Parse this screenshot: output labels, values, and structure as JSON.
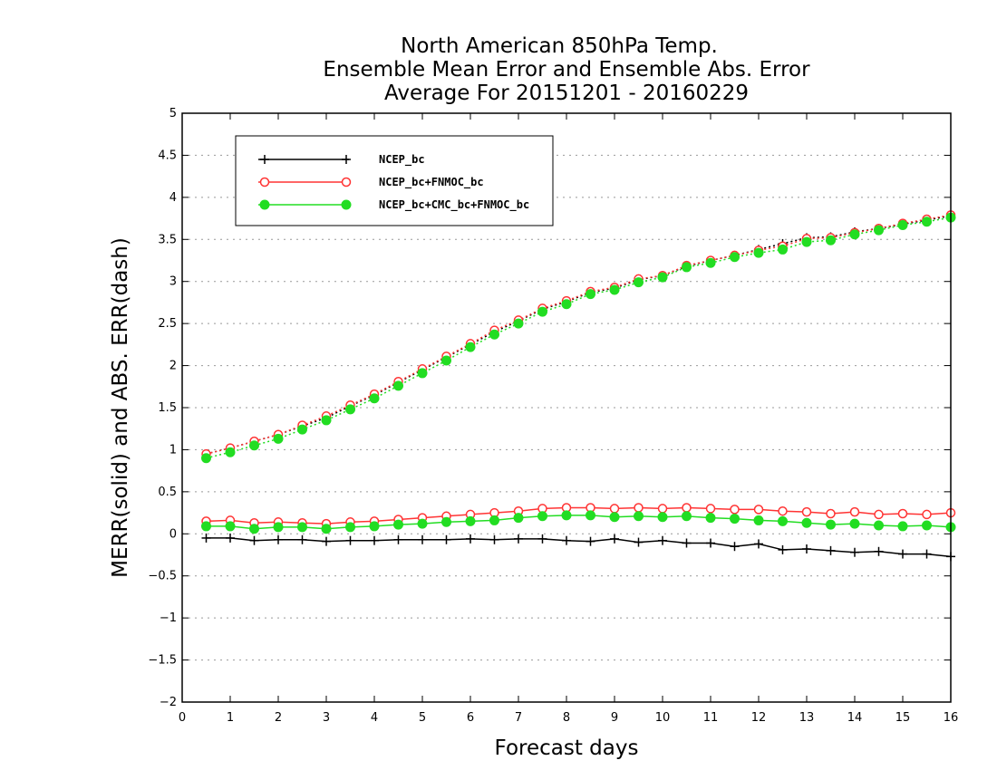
{
  "chart_data": {
    "type": "line",
    "title": [
      "North American 850hPa Temp.",
      "Ensemble Mean Error and Ensemble Abs. Error",
      "Average For 20151201 - 20160229"
    ],
    "xlabel": "Forecast days",
    "ylabel": "MERR(solid) and ABS. ERR(dash)",
    "xlim": [
      0,
      16
    ],
    "ylim": [
      -2,
      5
    ],
    "x_ticks": [
      "0",
      "1",
      "2",
      "3",
      "4",
      "5",
      "6",
      "7",
      "8",
      "9",
      "10",
      "11",
      "12",
      "13",
      "14",
      "15",
      "16"
    ],
    "y_ticks": [
      "−2",
      "−1.5",
      "−1",
      "−0.5",
      "0",
      "0.5",
      "1",
      "1.5",
      "2",
      "2.5",
      "3",
      "3.5",
      "4",
      "4.5",
      "5"
    ],
    "grid": "horizontal dotted",
    "legend_position": "top-left",
    "x": [
      0.5,
      1,
      1.5,
      2,
      2.5,
      3,
      3.5,
      4,
      4.5,
      5,
      5.5,
      6,
      6.5,
      7,
      7.5,
      8,
      8.5,
      9,
      9.5,
      10,
      10.5,
      11,
      11.5,
      12,
      12.5,
      13,
      13.5,
      14,
      14.5,
      15,
      15.5,
      16
    ],
    "series": [
      {
        "name": "NCEP_bc",
        "color": "#000000",
        "marker": "plus",
        "merr": [
          -0.05,
          -0.05,
          -0.08,
          -0.07,
          -0.07,
          -0.09,
          -0.08,
          -0.08,
          -0.07,
          -0.07,
          -0.07,
          -0.06,
          -0.07,
          -0.06,
          -0.06,
          -0.08,
          -0.09,
          -0.06,
          -0.1,
          -0.08,
          -0.11,
          -0.11,
          -0.15,
          -0.12,
          -0.19,
          -0.18,
          -0.2,
          -0.22,
          -0.21,
          -0.24,
          -0.24,
          -0.27
        ],
        "abs_err": [
          0.95,
          1.02,
          1.1,
          1.18,
          1.28,
          1.38,
          1.52,
          1.65,
          1.8,
          1.95,
          2.1,
          2.25,
          2.4,
          2.53,
          2.67,
          2.76,
          2.87,
          2.92,
          3.02,
          3.07,
          3.18,
          3.25,
          3.31,
          3.38,
          3.45,
          3.52,
          3.53,
          3.59,
          3.63,
          3.68,
          3.73,
          3.78
        ]
      },
      {
        "name": "NCEP_bc+FNMOC_bc",
        "color": "#ff3333",
        "marker": "open-circle",
        "merr": [
          0.15,
          0.16,
          0.13,
          0.14,
          0.13,
          0.12,
          0.14,
          0.15,
          0.17,
          0.19,
          0.21,
          0.23,
          0.25,
          0.27,
          0.3,
          0.31,
          0.31,
          0.3,
          0.31,
          0.3,
          0.31,
          0.3,
          0.29,
          0.29,
          0.27,
          0.26,
          0.24,
          0.26,
          0.23,
          0.24,
          0.23,
          0.25
        ],
        "abs_err": [
          0.95,
          1.02,
          1.1,
          1.18,
          1.29,
          1.4,
          1.53,
          1.66,
          1.81,
          1.96,
          2.11,
          2.26,
          2.42,
          2.54,
          2.68,
          2.77,
          2.88,
          2.93,
          3.03,
          3.07,
          3.19,
          3.25,
          3.31,
          3.37,
          3.42,
          3.51,
          3.52,
          3.58,
          3.63,
          3.69,
          3.74,
          3.79
        ]
      },
      {
        "name": "NCEP_bc+CMC_bc+FNMOC_bc",
        "color": "#22dd22",
        "marker": "filled-circle",
        "merr": [
          0.09,
          0.09,
          0.06,
          0.08,
          0.08,
          0.06,
          0.08,
          0.09,
          0.11,
          0.12,
          0.14,
          0.15,
          0.16,
          0.19,
          0.21,
          0.22,
          0.22,
          0.2,
          0.21,
          0.2,
          0.21,
          0.19,
          0.18,
          0.16,
          0.15,
          0.13,
          0.11,
          0.12,
          0.1,
          0.09,
          0.1,
          0.08
        ],
        "abs_err": [
          0.9,
          0.97,
          1.05,
          1.13,
          1.24,
          1.35,
          1.48,
          1.61,
          1.76,
          1.91,
          2.06,
          2.22,
          2.37,
          2.5,
          2.64,
          2.73,
          2.85,
          2.9,
          2.99,
          3.05,
          3.17,
          3.22,
          3.29,
          3.34,
          3.38,
          3.47,
          3.49,
          3.56,
          3.61,
          3.67,
          3.71,
          3.76
        ]
      }
    ]
  }
}
